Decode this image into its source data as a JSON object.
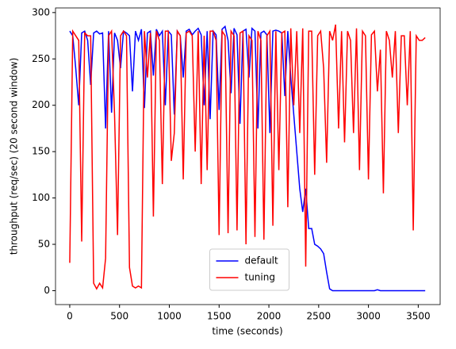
{
  "chart_data": {
    "type": "line",
    "xlabel": "time (seconds)",
    "ylabel": "throughput (req/sec) (20 second window)",
    "x": [
      0,
      30,
      60,
      90,
      120,
      150,
      180,
      210,
      240,
      270,
      300,
      330,
      360,
      390,
      420,
      450,
      480,
      510,
      540,
      570,
      600,
      630,
      660,
      690,
      720,
      750,
      780,
      810,
      840,
      870,
      900,
      930,
      960,
      990,
      1020,
      1050,
      1080,
      1110,
      1140,
      1170,
      1200,
      1230,
      1260,
      1290,
      1320,
      1350,
      1380,
      1410,
      1440,
      1470,
      1500,
      1530,
      1560,
      1590,
      1620,
      1650,
      1680,
      1710,
      1740,
      1770,
      1800,
      1830,
      1860,
      1890,
      1920,
      1950,
      1980,
      2010,
      2040,
      2070,
      2100,
      2130,
      2160,
      2190,
      2220,
      2250,
      2280,
      2310,
      2340,
      2370,
      2400,
      2430,
      2460,
      2490,
      2520,
      2550,
      2580,
      2610,
      2640,
      2670,
      2700,
      2730,
      2760,
      2790,
      2820,
      2850,
      2880,
      2910,
      2940,
      2970,
      3000,
      3030,
      3060,
      3090,
      3120,
      3150,
      3180,
      3210,
      3240,
      3270,
      3300,
      3330,
      3360,
      3390,
      3420,
      3450,
      3480,
      3510,
      3540,
      3570
    ],
    "series": [
      {
        "name": "default",
        "color": "#0000ff",
        "values": [
          280,
          275,
          240,
          200,
          278,
          280,
          270,
          222,
          278,
          280,
          277,
          278,
          175,
          280,
          192,
          278,
          270,
          240,
          280,
          278,
          275,
          215,
          280,
          270,
          282,
          197,
          278,
          280,
          232,
          282,
          275,
          280,
          200,
          280,
          276,
          190,
          280,
          275,
          230,
          280,
          282,
          276,
          280,
          283,
          276,
          200,
          280,
          185,
          280,
          276,
          195,
          282,
          285,
          270,
          213,
          283,
          276,
          180,
          280,
          282,
          230,
          283,
          280,
          175,
          278,
          280,
          276,
          170,
          280,
          281,
          280,
          278,
          210,
          280,
          230,
          190,
          150,
          110,
          85,
          110,
          67,
          67,
          50,
          48,
          45,
          40,
          20,
          2,
          0,
          0,
          0,
          0,
          0,
          0,
          0,
          0,
          0,
          0,
          0,
          0,
          0,
          0,
          0,
          1,
          0,
          0,
          0,
          0,
          0,
          0,
          0,
          0,
          0,
          0,
          0,
          0,
          0,
          0,
          0,
          0
        ]
      },
      {
        "name": "tuning",
        "color": "#ff0000",
        "values": [
          30,
          280,
          275,
          270,
          53,
          278,
          275,
          275,
          8,
          2,
          8,
          3,
          35,
          275,
          280,
          190,
          60,
          275,
          280,
          275,
          25,
          5,
          3,
          5,
          3,
          280,
          230,
          278,
          80,
          280,
          270,
          115,
          280,
          280,
          140,
          170,
          280,
          275,
          120,
          278,
          280,
          275,
          150,
          280,
          115,
          275,
          130,
          280,
          280,
          270,
          60,
          280,
          275,
          62,
          280,
          275,
          65,
          278,
          280,
          50,
          275,
          270,
          58,
          280,
          270,
          55,
          275,
          280,
          70,
          280,
          130,
          278,
          280,
          90,
          283,
          200,
          280,
          170,
          283,
          26,
          280,
          280,
          125,
          275,
          280,
          240,
          138,
          280,
          270,
          287,
          175,
          280,
          160,
          280,
          270,
          170,
          283,
          130,
          280,
          275,
          120,
          276,
          280,
          215,
          260,
          105,
          280,
          270,
          230,
          280,
          170,
          275,
          275,
          200,
          280,
          65,
          275,
          270,
          270,
          273
        ]
      }
    ],
    "xlim": [
      -143,
      3720
    ],
    "xticks": [
      0,
      500,
      1000,
      1500,
      2000,
      2500,
      3000,
      3500
    ],
    "ylim": [
      -15,
      305
    ],
    "yticks": [
      0,
      50,
      100,
      150,
      200,
      250,
      300
    ],
    "legend": "lower center"
  }
}
